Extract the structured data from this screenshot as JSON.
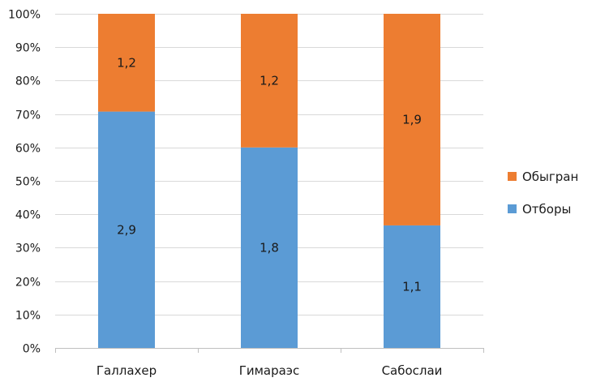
{
  "chart_data": {
    "type": "bar",
    "stacked": true,
    "normalized": true,
    "categories": [
      "Галлахер",
      "Гимараэс",
      "Сабослаи"
    ],
    "series": [
      {
        "name": "Отборы",
        "values": [
          2.9,
          1.8,
          1.1
        ],
        "value_labels": [
          "2,9",
          "1,8",
          "1,1"
        ],
        "color": "#5B9BD5"
      },
      {
        "name": "Обыгран",
        "values": [
          1.2,
          1.2,
          1.9
        ],
        "value_labels": [
          "1,2",
          "1,2",
          "1,9"
        ],
        "color": "#ED7D31"
      }
    ],
    "y_ticks": [
      "0%",
      "10%",
      "20%",
      "30%",
      "40%",
      "50%",
      "60%",
      "70%",
      "80%",
      "90%",
      "100%"
    ],
    "ylim": [
      0,
      100
    ],
    "grid": true,
    "legend_position": "right",
    "legend_order": [
      "Обыгран",
      "Отборы"
    ],
    "gridline_color": "#D9D9D9",
    "axis_color": "#BFBFBF"
  }
}
